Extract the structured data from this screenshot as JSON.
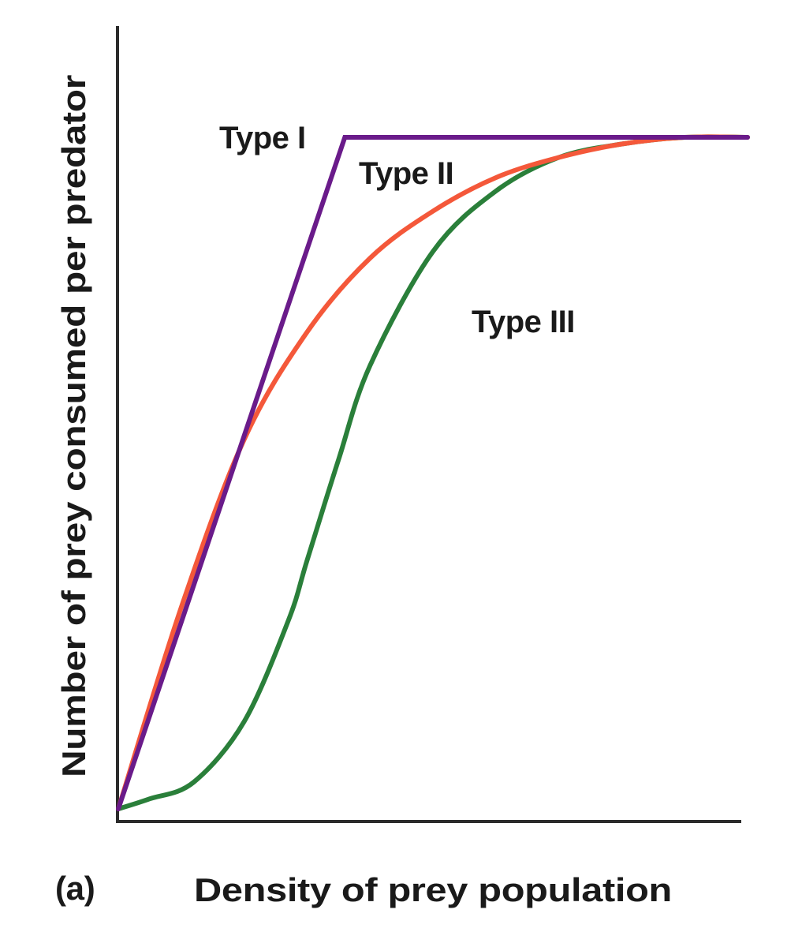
{
  "chart_data": {
    "type": "line",
    "title": "",
    "panel_label": "(a)",
    "xlabel": "Density of prey population",
    "ylabel": "Number of prey consumed per predator",
    "xlim": [
      0,
      100
    ],
    "ylim": [
      0,
      100
    ],
    "grid": false,
    "legend": "inline labels",
    "tick_labels": {
      "x": [],
      "y": []
    },
    "series": [
      {
        "name": "Type I",
        "color": "#6a1b8a",
        "x": [
          0,
          36,
          100
        ],
        "y": [
          0,
          100,
          100
        ]
      },
      {
        "name": "Type II",
        "color": "#f4583a",
        "x": [
          0,
          10,
          20,
          30,
          40,
          50,
          60,
          70,
          80,
          90,
          100
        ],
        "y": [
          0,
          30,
          55,
          71,
          82,
          89,
          94,
          97,
          99,
          100,
          100
        ]
      },
      {
        "name": "Type III",
        "color": "#2a7f3a",
        "x": [
          0,
          5,
          12,
          20,
          27,
          30,
          35,
          40,
          50,
          60,
          70,
          80,
          90,
          100
        ],
        "y": [
          0,
          1.5,
          4,
          13,
          28,
          37,
          52,
          66,
          83,
          92,
          97,
          99,
          100,
          100
        ]
      }
    ]
  },
  "labels": {
    "type1": "Type I",
    "type2": "Type II",
    "type3": "Type III",
    "xlabel": "Density of prey population",
    "ylabel": "Number of prey consumed per predator",
    "panel": "(a)"
  }
}
